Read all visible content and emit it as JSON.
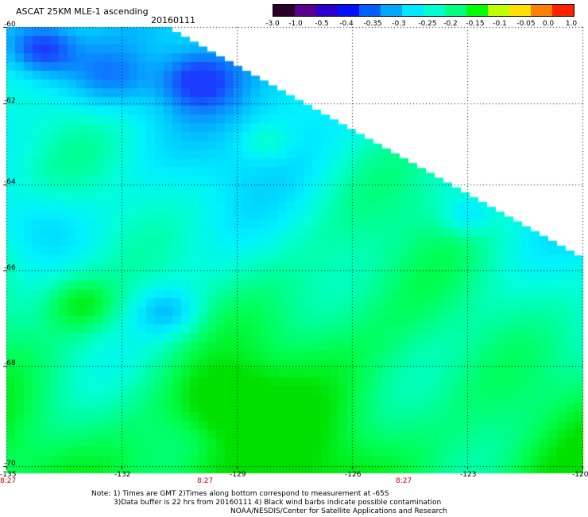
{
  "header": {
    "title": "ASCAT 25KM MLE-1 ascending",
    "date": "20160111"
  },
  "colorbar": {
    "ticks": [
      "-3.0",
      "-1.0",
      "-0.5",
      "-0.4",
      "-0.35",
      "-0.3",
      "-0.25",
      "-0.2",
      "-0.15",
      "-0.1",
      "-0.05",
      "0.0",
      "1.0"
    ],
    "colors": [
      "#2a0028",
      "#5a0090",
      "#2a00d0",
      "#0010ff",
      "#0060ff",
      "#00a8ff",
      "#00e8ff",
      "#00ffd0",
      "#00ff80",
      "#00ff00",
      "#c0ff00",
      "#ffe000",
      "#ff8000",
      "#ff2000"
    ]
  },
  "map": {
    "lat_labels": [
      "-60",
      "-62",
      "-64",
      "-66",
      "-68",
      "-70"
    ],
    "lon_labels": [
      "-135",
      "-132",
      "-129",
      "-126",
      "-123",
      "-120"
    ],
    "time_labels": [
      "8:27",
      "8:27",
      "8:27"
    ]
  },
  "notes": {
    "line1": "Note: 1) Times are GMT 2)Times along bottom correspond to measurement at -65S",
    "line2": "3)Data buffer is 22 hrs from 20160111 4) Black wind barbs indicate possible contamination",
    "line3": "NOAA/NESDIS/Center for Satellite Applications and Research"
  }
}
